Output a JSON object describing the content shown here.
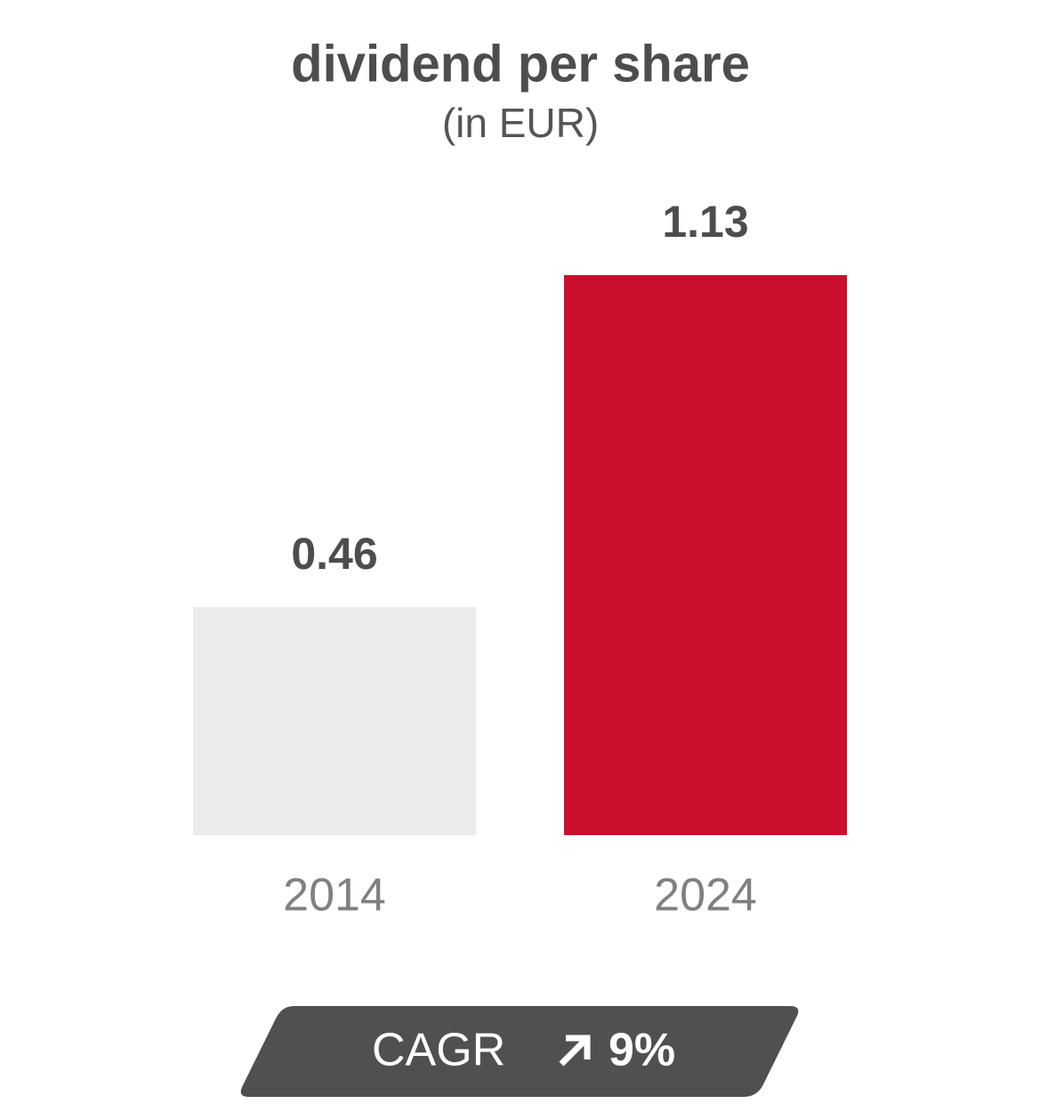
{
  "chart_data": {
    "type": "bar",
    "title": "dividend per share",
    "subtitle": "(in EUR)",
    "categories": [
      "2014",
      "2024"
    ],
    "values": [
      0.46,
      1.13
    ],
    "colors": [
      "#ebebeb",
      "#cc0e2e"
    ],
    "annotation": {
      "label": "CAGR",
      "value_label": "9%"
    }
  }
}
